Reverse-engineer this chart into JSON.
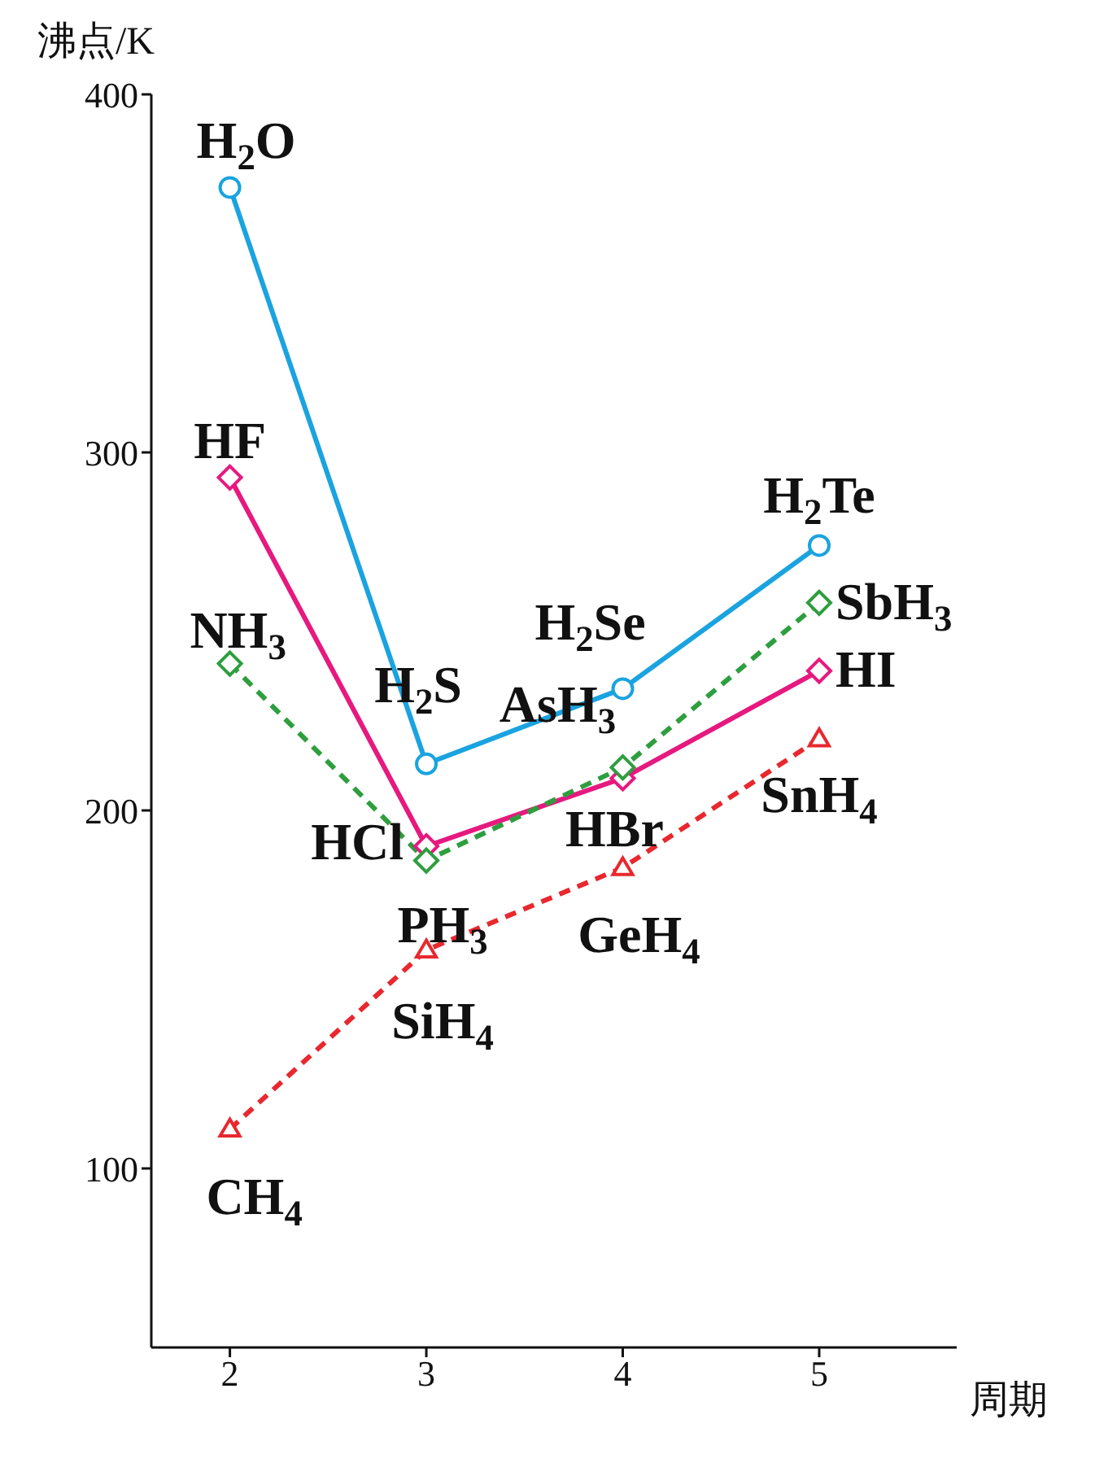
{
  "chart_data": {
    "type": "line",
    "xlabel": "周期",
    "ylabel": "沸点/K",
    "xlim": [
      1.6,
      5.7
    ],
    "xticks": [
      2,
      3,
      4,
      5
    ],
    "ylim": [
      50,
      400
    ],
    "yticks": [
      100,
      200,
      300,
      400
    ],
    "series": [
      {
        "color": "#1aa3e0",
        "marker": "circle",
        "line_style": "solid",
        "x": [
          2,
          3,
          4,
          5
        ],
        "values": [
          374,
          213,
          234,
          274
        ]
      },
      {
        "color": "#e6197f",
        "marker": "diamond",
        "line_style": "solid",
        "x": [
          2,
          3,
          4,
          5
        ],
        "values": [
          293,
          190,
          209,
          239
        ]
      },
      {
        "color": "#2e9e3e",
        "marker": "diamond",
        "line_style": "dashed",
        "x": [
          2,
          3,
          4,
          5
        ],
        "values": [
          241,
          186,
          212,
          258
        ]
      },
      {
        "color": "#e8282e",
        "marker": "triangle",
        "line_style": "dashed",
        "x": [
          2,
          3,
          4,
          5
        ],
        "values": [
          111,
          161,
          184,
          220
        ]
      }
    ],
    "annotations": [
      {
        "text": "H$_{2}$O",
        "x": 2,
        "y": 374
      },
      {
        "text": "H$_{2}$S",
        "x": 3,
        "y": 213
      },
      {
        "text": "H$_{2}$Se",
        "x": 4,
        "y": 234
      },
      {
        "text": "H$_{2}$Te",
        "x": 5,
        "y": 274
      },
      {
        "text": "HF",
        "x": 2,
        "y": 293
      },
      {
        "text": "HCl",
        "x": 3,
        "y": 190
      },
      {
        "text": "HBr",
        "x": 4,
        "y": 209
      },
      {
        "text": "HI",
        "x": 5,
        "y": 239
      },
      {
        "text": "NH$_{3}$",
        "x": 2,
        "y": 241
      },
      {
        "text": "PH$_{3}$",
        "x": 3,
        "y": 186
      },
      {
        "text": "AsH$_{3}$",
        "x": 4,
        "y": 212
      },
      {
        "text": "SbH$_{3}$",
        "x": 5,
        "y": 258
      },
      {
        "text": "CH$_{4}$",
        "x": 2,
        "y": 111
      },
      {
        "text": "SiH$_{4}$",
        "x": 3,
        "y": 161
      },
      {
        "text": "GeH$_{4}$",
        "x": 4,
        "y": 184
      },
      {
        "text": "SnH$_{4}$",
        "x": 5,
        "y": 220
      }
    ]
  }
}
